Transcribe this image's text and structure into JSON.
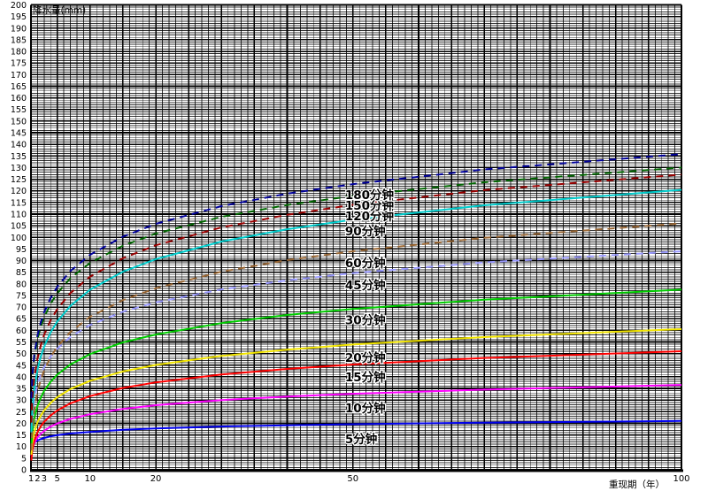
{
  "chart_data": {
    "type": "line",
    "title": "",
    "ylabel": "降水量(mm)",
    "xlabel": "重现期（年）",
    "x_axis": {
      "min": 1,
      "max": 100,
      "scale": "linear",
      "ticks": [
        {
          "t": 1,
          "label": "1"
        },
        {
          "t": 2,
          "label": "2"
        },
        {
          "t": 3,
          "label": "3"
        },
        {
          "t": 5,
          "label": "5"
        },
        {
          "t": 10,
          "label": "10"
        },
        {
          "t": 20,
          "label": "20"
        },
        {
          "t": 50,
          "label": "50"
        },
        {
          "t": 100,
          "label": "100"
        }
      ]
    },
    "y_axis": {
      "min": 0,
      "max": 200,
      "tick_step": 5,
      "minor_step": 1,
      "major_step": 5
    },
    "grid": {
      "on": true,
      "minor_color": "#000000",
      "major_color": "#000000"
    },
    "legend_position": "inline-labels",
    "x_samples": [
      1.05,
      1.2,
      1.5,
      2,
      2.5,
      3,
      4,
      5,
      7,
      10,
      15,
      20,
      30,
      40,
      50,
      70,
      100
    ],
    "series": [
      {
        "label": "5分钟",
        "color": "#0000ee",
        "style": "solid",
        "label_t": 48.8,
        "label_v": 13.3,
        "values": [
          9.7,
          10.8,
          11.7,
          12.6,
          13.2,
          13.7,
          14.4,
          14.9,
          15.6,
          16.3,
          17.2,
          17.8,
          18.6,
          19.1,
          19.6,
          20.3,
          21.0
        ]
      },
      {
        "label": "10分钟",
        "color": "#ff00ff",
        "style": "solid",
        "label_t": 48.8,
        "label_v": 26.6,
        "values": [
          6.0,
          8.8,
          11.4,
          13.9,
          15.5,
          16.7,
          18.6,
          19.9,
          21.9,
          23.9,
          26.2,
          27.8,
          30.0,
          31.5,
          32.7,
          34.5,
          36.5
        ]
      },
      {
        "label": "15分钟",
        "color": "#ff0000",
        "style": "solid",
        "label_t": 48.8,
        "label_v": 40.0,
        "values": [
          4.0,
          8.4,
          12.4,
          16.2,
          18.7,
          20.6,
          23.4,
          25.5,
          28.6,
          31.7,
          35.2,
          37.6,
          41.0,
          43.4,
          45.3,
          48.1,
          51.0
        ]
      },
      {
        "label": "20分钟",
        "color": "#f2e500",
        "style": "solid",
        "label_t": 48.8,
        "label_v": 48.4,
        "values": [
          6.5,
          11.5,
          16.1,
          20.5,
          23.3,
          25.5,
          28.8,
          31.2,
          34.7,
          38.3,
          42.3,
          45.1,
          49.0,
          51.7,
          53.9,
          57.1,
          60.5
        ]
      },
      {
        "label": "30分钟",
        "color": "#00cc00",
        "style": "solid",
        "label_t": 48.8,
        "label_v": 64.6,
        "values": [
          10.1,
          16.3,
          22.1,
          27.5,
          31.1,
          33.9,
          37.9,
          40.9,
          45.3,
          49.8,
          54.8,
          58.2,
          63.1,
          66.6,
          69.2,
          73.2,
          77.5
        ]
      },
      {
        "label": "45分钟",
        "color": "#9999ff",
        "style": "dashed",
        "label_t": 48.8,
        "label_v": 79.5,
        "values": [
          16.9,
          24.0,
          30.6,
          36.8,
          41.0,
          44.1,
          48.7,
          52.1,
          57.1,
          62.3,
          68.0,
          72.0,
          77.6,
          81.5,
          84.6,
          89.2,
          94.0
        ]
      },
      {
        "label": "60分钟",
        "color": "#996633",
        "style": "dashed",
        "label_t": 48.8,
        "label_v": 89.0,
        "values": [
          8.3,
          17.3,
          25.7,
          33.6,
          38.8,
          42.7,
          48.6,
          52.9,
          59.3,
          65.8,
          73.0,
          78.1,
          85.2,
          90.2,
          94.0,
          99.8,
          106.0
        ]
      },
      {
        "label": "90分钟",
        "color": "#00cccc",
        "style": "solid",
        "label_t": 48.8,
        "label_v": 102.7,
        "values": [
          16.1,
          25.8,
          34.7,
          43.1,
          48.7,
          52.9,
          59.2,
          63.8,
          70.5,
          77.5,
          85.2,
          90.6,
          98.2,
          103.5,
          107.6,
          113.8,
          120.4
        ]
      },
      {
        "label": "120分钟",
        "color": "#990000",
        "style": "dashed",
        "label_t": 48.8,
        "label_v": 109.2,
        "values": [
          20.3,
          30.2,
          39.3,
          47.9,
          53.6,
          58.0,
          64.4,
          69.1,
          76.0,
          83.1,
          91.0,
          96.6,
          104.3,
          109.7,
          114.0,
          120.3,
          127.0
        ]
      },
      {
        "label": "150分钟",
        "color": "#006600",
        "style": "dashed",
        "label_t": 48.8,
        "label_v": 113.8,
        "values": [
          30.4,
          39.6,
          48.2,
          56.2,
          61.5,
          65.5,
          71.5,
          75.9,
          82.4,
          89.0,
          96.4,
          101.6,
          108.8,
          113.9,
          117.8,
          123.7,
          130.0
        ]
      },
      {
        "label": "180分钟",
        "color": "#000099",
        "style": "dashed",
        "label_t": 48.8,
        "label_v": 118.4,
        "values": [
          30.6,
          40.3,
          49.3,
          57.8,
          63.4,
          67.7,
          74.0,
          78.7,
          85.5,
          92.5,
          100.3,
          105.8,
          113.4,
          118.8,
          122.9,
          129.2,
          135.8
        ]
      }
    ]
  }
}
